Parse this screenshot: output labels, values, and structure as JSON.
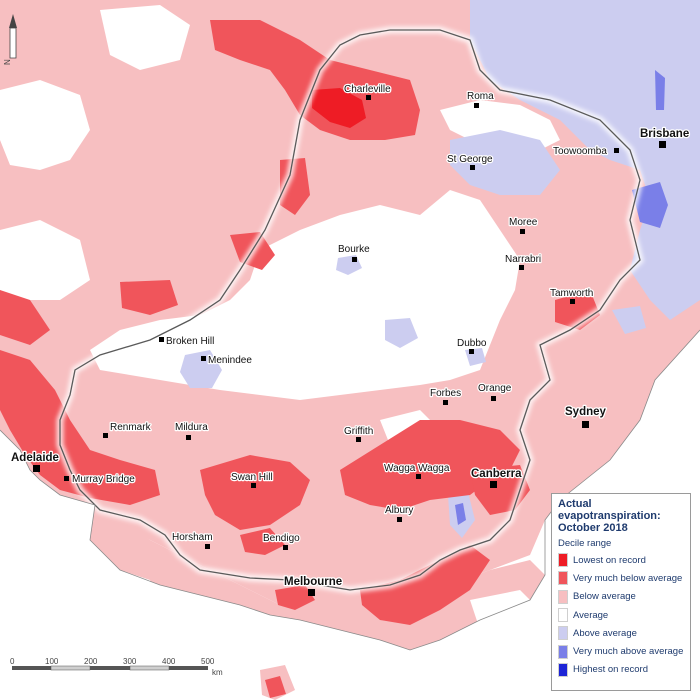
{
  "map": {
    "title_line1": "Actual",
    "title_line2": "evapotranspiration:",
    "title_line3": "October 2018",
    "legend_subtitle": "Decile range",
    "legend": [
      {
        "label": "Lowest on record",
        "color": "#ee1c25"
      },
      {
        "label": "Very much below average",
        "color": "#f0555b"
      },
      {
        "label": "Below average",
        "color": "#f7bfc1"
      },
      {
        "label": "Average",
        "color": "#ffffff"
      },
      {
        "label": "Above average",
        "color": "#cccdf0"
      },
      {
        "label": "Very much above average",
        "color": "#7a7fe8"
      },
      {
        "label": "Highest on record",
        "color": "#1d24d6"
      }
    ],
    "north_label": "N",
    "scale": {
      "ticks": [
        "0",
        "100",
        "200",
        "300",
        "400",
        "500"
      ],
      "unit": "km"
    },
    "places": {
      "charleville": "Charleville",
      "roma": "Roma",
      "brisbane": "Brisbane",
      "toowoomba": "Toowoomba",
      "st_george": "St George",
      "moree": "Moree",
      "bourke": "Bourke",
      "narrabri": "Narrabri",
      "tamworth": "Tamworth",
      "broken_hill": "Broken Hill",
      "menindee": "Menindee",
      "dubbo": "Dubbo",
      "forbes": "Forbes",
      "orange": "Orange",
      "sydney": "Sydney",
      "renmark": "Renmark",
      "mildura": "Mildura",
      "griffith": "Griffith",
      "adelaide": "Adelaide",
      "murray_bridge": "Murray Bridge",
      "wagga_wagga": "Wagga Wagga",
      "canberra": "Canberra",
      "swan_hill": "Swan Hill",
      "albury": "Albury",
      "horsham": "Horsham",
      "bendigo": "Bendigo",
      "melbourne": "Melbourne"
    }
  }
}
